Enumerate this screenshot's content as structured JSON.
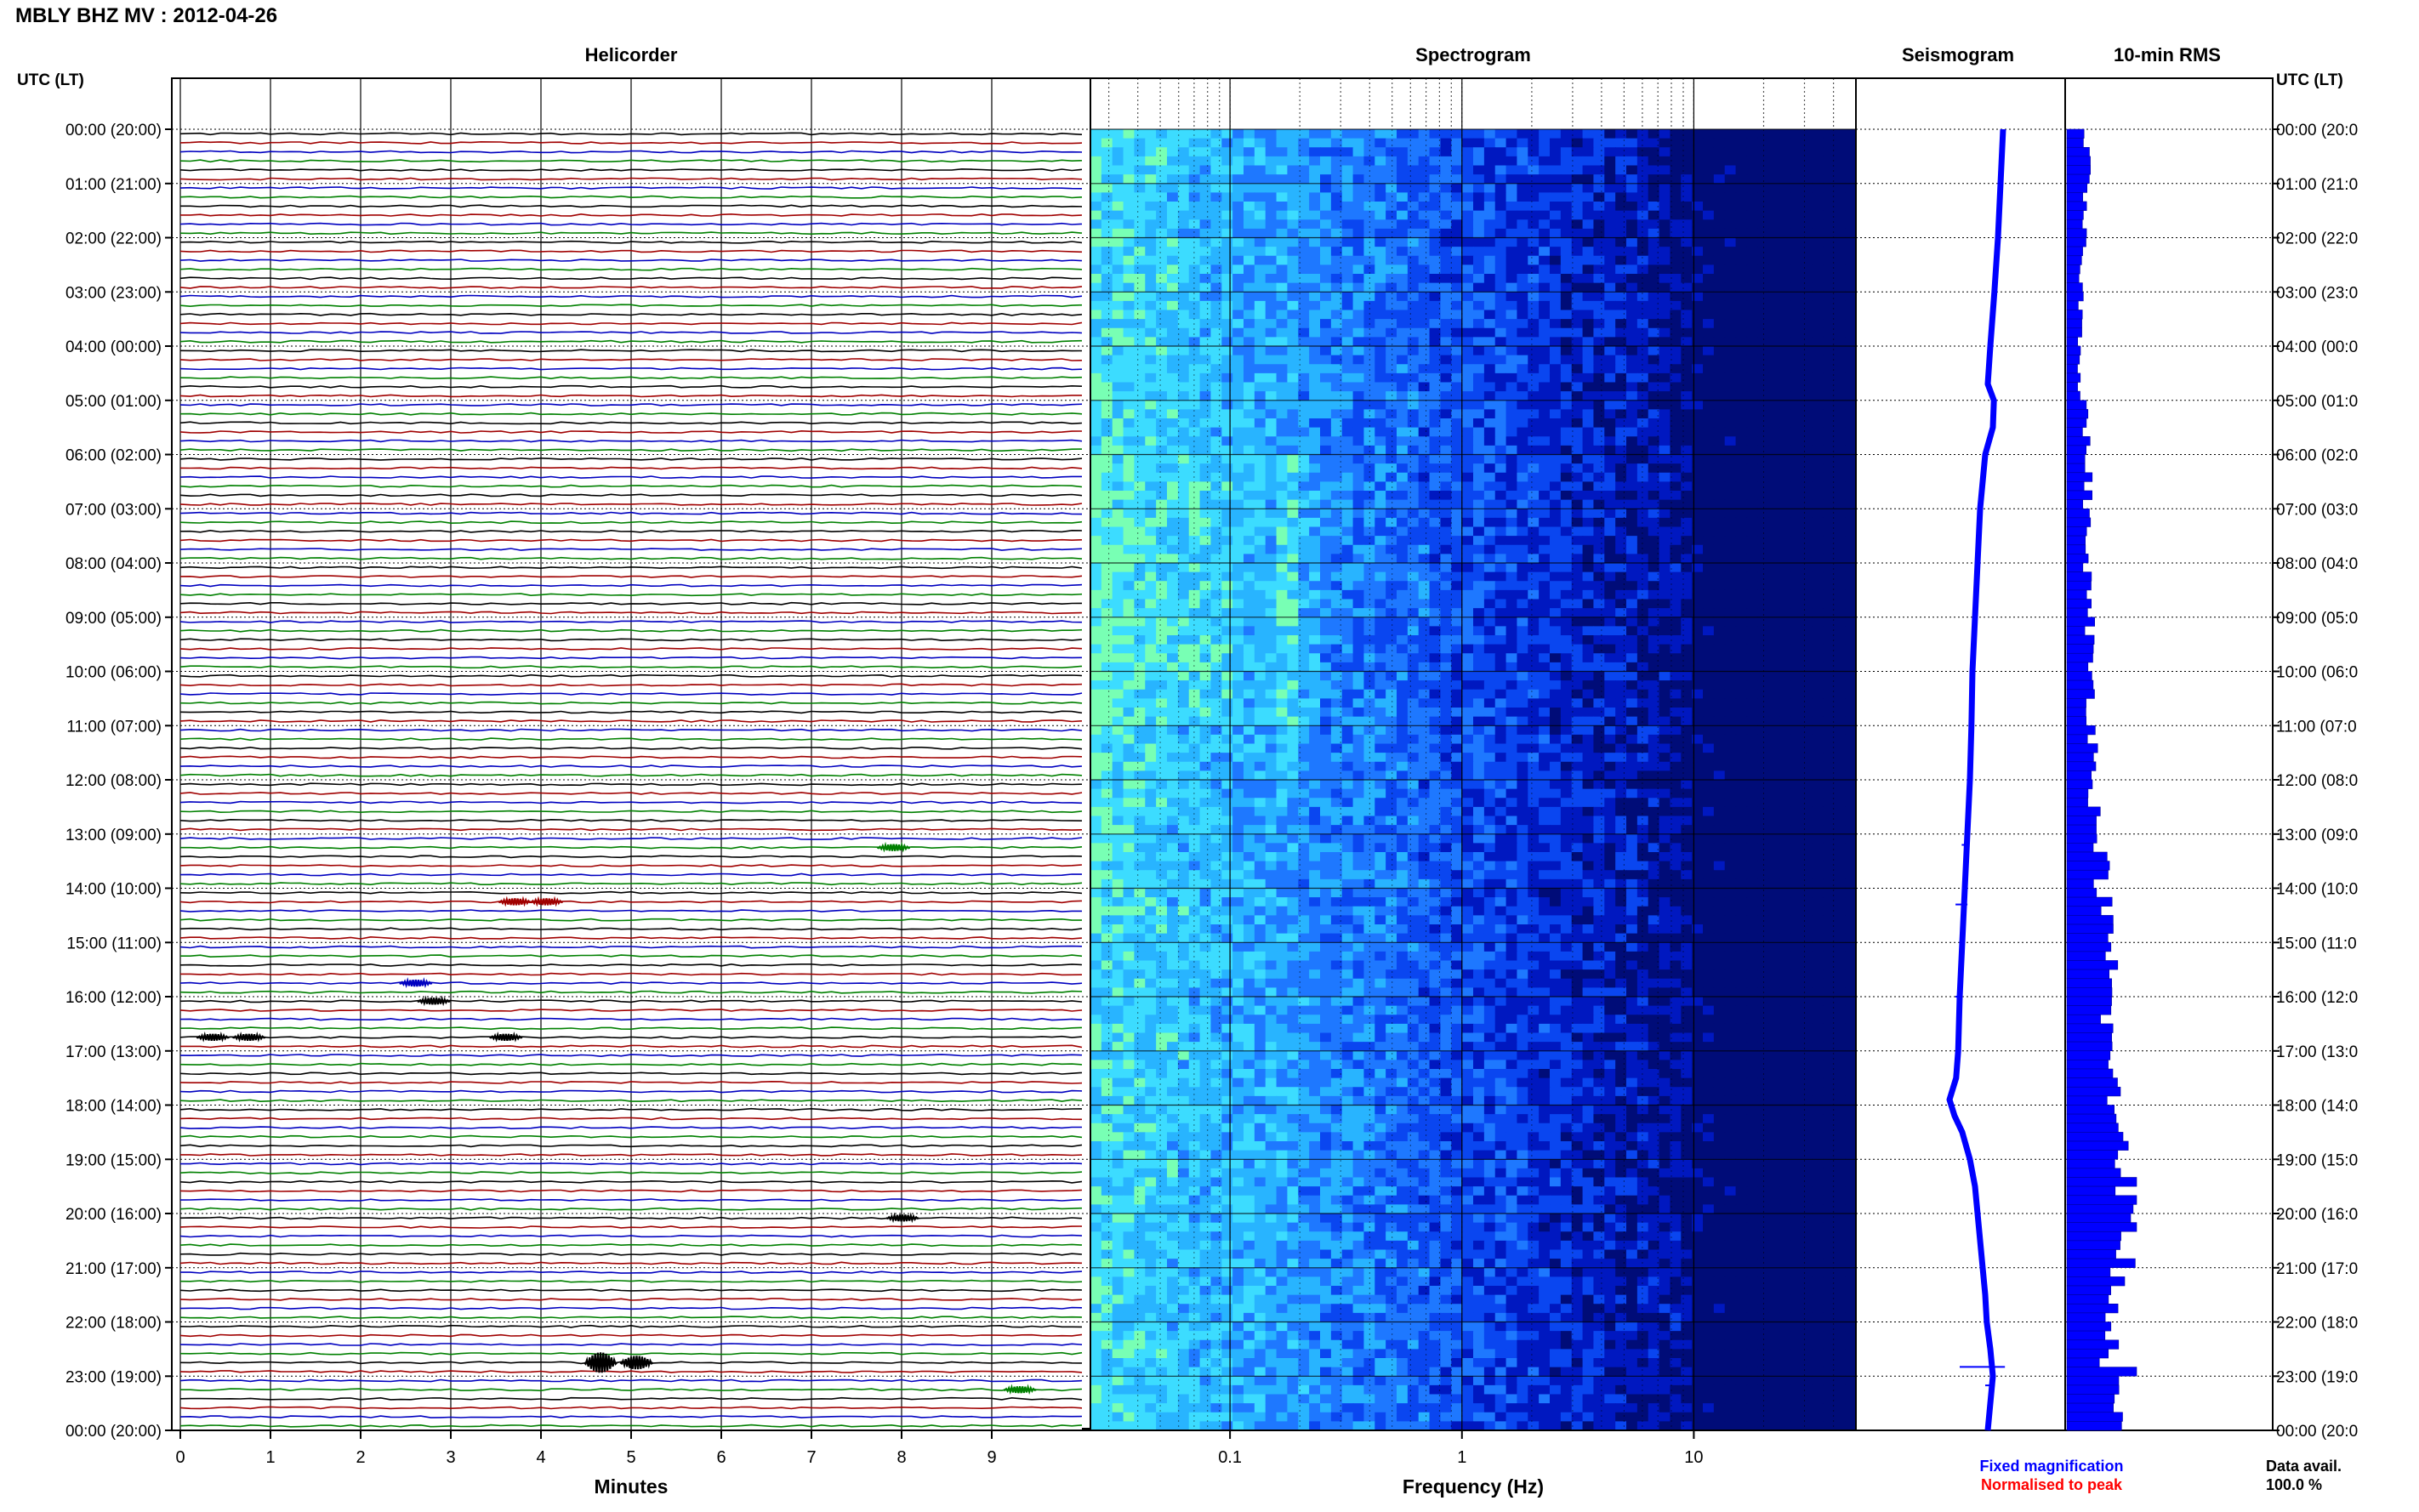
{
  "header": {
    "station": "MBLY BHZ MV : 2012-04-26"
  },
  "chart_data": {
    "type": "table",
    "panels": {
      "helicorder": "Helicorder",
      "spectrogram": "Spectrogram",
      "seismogram": "Seismogram",
      "rms": "10-min RMS"
    },
    "time_axis_label": "UTC (LT)",
    "time_ticks": [
      "00:00 (20:00)",
      "01:00 (21:00)",
      "02:00 (22:00)",
      "03:00 (23:00)",
      "04:00 (00:00)",
      "05:00 (01:00)",
      "06:00 (02:00)",
      "07:00 (03:00)",
      "08:00 (04:00)",
      "09:00 (05:00)",
      "10:00 (06:00)",
      "11:00 (07:00)",
      "12:00 (08:00)",
      "13:00 (09:00)",
      "14:00 (10:00)",
      "15:00 (11:00)",
      "16:00 (12:00)",
      "17:00 (13:00)",
      "18:00 (14:00)",
      "19:00 (15:00)",
      "20:00 (16:00)",
      "21:00 (17:00)",
      "22:00 (18:00)",
      "23:00 (19:00)",
      "00:00 (20:00)"
    ],
    "time_ticks_right": [
      "00:00 (20:0",
      "01:00 (21:0",
      "02:00 (22:0",
      "03:00 (23:0",
      "04:00 (00:0",
      "05:00 (01:0",
      "06:00 (02:0",
      "07:00 (03:0",
      "08:00 (04:0",
      "09:00 (05:0",
      "10:00 (06:0",
      "11:00 (07:0",
      "12:00 (08:0",
      "13:00 (09:0",
      "14:00 (10:0",
      "15:00 (11:0",
      "16:00 (12:0",
      "17:00 (13:0",
      "18:00 (14:0",
      "19:00 (15:0",
      "20:00 (16:0",
      "21:00 (17:0",
      "22:00 (18:0",
      "23:00 (19:0",
      "00:00 (20:0"
    ],
    "helicorder": {
      "xlabel": "Minutes",
      "xticks": [
        "0",
        "1",
        "2",
        "3",
        "4",
        "5",
        "6",
        "7",
        "8",
        "9"
      ],
      "xlim": [
        0,
        10
      ],
      "lines_per_hour": 6,
      "trace_colors": [
        "#000000",
        "#a00000",
        "#0000c0",
        "#008000"
      ],
      "events": [
        {
          "hour": 13.17,
          "minute": 7.9,
          "size": 1
        },
        {
          "hour": 14.33,
          "minute": 3.7,
          "size": 1
        },
        {
          "hour": 14.33,
          "minute": 4.05,
          "size": 1
        },
        {
          "hour": 15.83,
          "minute": 2.6,
          "size": 1
        },
        {
          "hour": 16.0,
          "minute": 2.8,
          "size": 1
        },
        {
          "hour": 16.83,
          "minute": 0.35,
          "size": 1
        },
        {
          "hour": 16.83,
          "minute": 0.75,
          "size": 1
        },
        {
          "hour": 16.67,
          "minute": 3.6,
          "size": 1
        },
        {
          "hour": 20.0,
          "minute": 8.0,
          "size": 1
        },
        {
          "hour": 22.83,
          "minute": 4.65,
          "size": 3
        },
        {
          "hour": 22.83,
          "minute": 5.05,
          "size": 2
        },
        {
          "hour": 23.17,
          "minute": 9.3,
          "size": 1
        }
      ]
    },
    "spectrogram": {
      "xlabel": "Frequency (Hz)",
      "xscale": "log",
      "xlim": [
        0.025,
        50
      ],
      "xticks": [
        "0.1",
        "1",
        "10"
      ],
      "colormap": [
        "#000c78",
        "#0018c0",
        "#0a46f0",
        "#1e78ff",
        "#28b4ff",
        "#3cdcff",
        "#78ffb4"
      ]
    },
    "seismogram": {
      "color": "#0000ff",
      "hours": [
        0,
        1,
        2,
        3,
        4,
        4.7,
        5,
        5.5,
        6,
        7,
        8,
        9,
        10,
        11,
        12,
        13,
        14,
        15,
        16,
        17,
        17.5,
        17.9,
        18.2,
        18.5,
        19,
        19.5,
        20,
        20.5,
        21,
        21.5,
        22,
        22.5,
        23,
        23.5,
        24
      ],
      "values": [
        0.5,
        0.45,
        0.4,
        0.33,
        0.25,
        0.2,
        0.32,
        0.3,
        0.15,
        0.05,
        0.0,
        -0.05,
        -0.1,
        -0.12,
        -0.15,
        -0.2,
        -0.25,
        -0.3,
        -0.35,
        -0.38,
        -0.42,
        -0.55,
        -0.45,
        -0.3,
        -0.15,
        -0.05,
        0.0,
        0.05,
        0.1,
        0.15,
        0.18,
        0.25,
        0.3,
        0.25,
        0.2
      ],
      "legend": {
        "fixed": "Fixed magnification",
        "normalised": "Normalised to peak",
        "fixed_color": "#0000ff",
        "normalised_color": "#ff0000"
      }
    },
    "rms": {
      "color": "#0000ff",
      "bin_minutes": 10,
      "hourly_level": [
        0.28,
        0.24,
        0.22,
        0.2,
        0.2,
        0.27,
        0.3,
        0.28,
        0.3,
        0.33,
        0.36,
        0.38,
        0.4,
        0.5,
        0.55,
        0.62,
        0.58,
        0.65,
        0.75,
        0.9,
        0.85,
        0.7,
        0.6,
        0.65
      ],
      "spikes": [
        {
          "hour": 22.83,
          "value": 1.0
        },
        {
          "hour": 19.83,
          "value": 0.95
        },
        {
          "hour": 18.67,
          "value": 0.88
        }
      ]
    },
    "data_availability": {
      "label": "Data avail.",
      "value": "100.0 %"
    }
  }
}
